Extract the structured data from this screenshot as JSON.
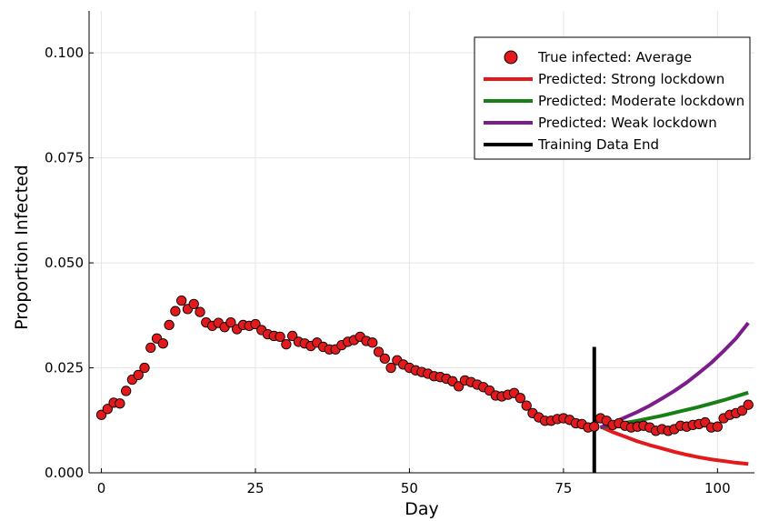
{
  "chart_data": {
    "type": "scatter",
    "xlabel": "Day",
    "ylabel": "Proportion Infected",
    "xlim": [
      -2,
      106
    ],
    "ylim": [
      0,
      0.11
    ],
    "x_ticks": [
      0,
      25,
      50,
      75,
      100
    ],
    "x_tick_labels": [
      "0",
      "25",
      "50",
      "75",
      "100"
    ],
    "y_ticks": [
      0,
      0.025,
      0.05,
      0.075,
      0.1
    ],
    "y_tick_labels": [
      "0.000",
      "0.025",
      "0.050",
      "0.075",
      "0.100"
    ],
    "grid": true,
    "legend_position": "top-right",
    "series": [
      {
        "name": "True infected: Average",
        "kind": "scatter",
        "color": "#e31a1c",
        "x": [
          0,
          1,
          2,
          3,
          4,
          5,
          6,
          7,
          8,
          9,
          10,
          11,
          12,
          13,
          14,
          15,
          16,
          17,
          18,
          19,
          20,
          21,
          22,
          23,
          24,
          25,
          26,
          27,
          28,
          29,
          30,
          31,
          32,
          33,
          34,
          35,
          36,
          37,
          38,
          39,
          40,
          41,
          42,
          43,
          44,
          45,
          46,
          47,
          48,
          49,
          50,
          51,
          52,
          53,
          54,
          55,
          56,
          57,
          58,
          59,
          60,
          61,
          62,
          63,
          64,
          65,
          66,
          67,
          68,
          69,
          70,
          71,
          72,
          73,
          74,
          75,
          76,
          77,
          78,
          79,
          80,
          81,
          82,
          83,
          84,
          85,
          86,
          87,
          88,
          89,
          90,
          91,
          92,
          93,
          94,
          95,
          96,
          97,
          98,
          99,
          100,
          101,
          102,
          103,
          104,
          105
        ],
        "y": [
          0.0138,
          0.0152,
          0.0167,
          0.0165,
          0.0195,
          0.0222,
          0.0233,
          0.025,
          0.0298,
          0.032,
          0.0308,
          0.0352,
          0.0385,
          0.041,
          0.039,
          0.0402,
          0.0383,
          0.0358,
          0.035,
          0.0357,
          0.0347,
          0.0358,
          0.0342,
          0.0352,
          0.035,
          0.0354,
          0.034,
          0.033,
          0.0326,
          0.0324,
          0.0306,
          0.0326,
          0.0312,
          0.0308,
          0.0302,
          0.031,
          0.03,
          0.0294,
          0.0294,
          0.0304,
          0.0312,
          0.0316,
          0.0324,
          0.0314,
          0.031,
          0.0288,
          0.0272,
          0.025,
          0.0268,
          0.0258,
          0.025,
          0.0244,
          0.024,
          0.0236,
          0.023,
          0.0228,
          0.0224,
          0.0218,
          0.0206,
          0.022,
          0.0216,
          0.021,
          0.0204,
          0.0196,
          0.0184,
          0.0182,
          0.0186,
          0.019,
          0.0178,
          0.016,
          0.0142,
          0.0132,
          0.0124,
          0.0124,
          0.0128,
          0.013,
          0.0126,
          0.0118,
          0.0116,
          0.0108,
          0.011,
          0.013,
          0.0124,
          0.0114,
          0.0118,
          0.0112,
          0.0108,
          0.011,
          0.0112,
          0.0108,
          0.01,
          0.0104,
          0.01,
          0.0104,
          0.0112,
          0.011,
          0.0114,
          0.0116,
          0.012,
          0.0108,
          0.011,
          0.013,
          0.0138,
          0.0142,
          0.0148,
          0.0162
        ]
      },
      {
        "name": "Predicted: Strong lockdown",
        "kind": "line",
        "color": "#e31a1c",
        "x": [
          81,
          83,
          85,
          87,
          89,
          91,
          93,
          95,
          97,
          99,
          101,
          103,
          105
        ],
        "y": [
          0.011,
          0.0097,
          0.0086,
          0.0075,
          0.0066,
          0.0058,
          0.005,
          0.0043,
          0.0037,
          0.0032,
          0.0028,
          0.0024,
          0.0021
        ]
      },
      {
        "name": "Predicted: Moderate lockdown",
        "kind": "line",
        "color": "#168016",
        "x": [
          81,
          83,
          85,
          87,
          89,
          91,
          93,
          95,
          97,
          99,
          101,
          103,
          105
        ],
        "y": [
          0.0108,
          0.0113,
          0.0119,
          0.0124,
          0.013,
          0.0136,
          0.0143,
          0.015,
          0.0157,
          0.0165,
          0.0173,
          0.0182,
          0.0191
        ]
      },
      {
        "name": "Predicted: Weak lockdown",
        "kind": "line",
        "color": "#7b1d8a",
        "x": [
          81,
          83,
          85,
          87,
          89,
          91,
          93,
          95,
          97,
          99,
          101,
          103,
          105
        ],
        "y": [
          0.0108,
          0.0119,
          0.0132,
          0.0145,
          0.016,
          0.0177,
          0.0195,
          0.0215,
          0.0238,
          0.0262,
          0.029,
          0.032,
          0.0357
        ]
      },
      {
        "name": "Training Data End",
        "kind": "vline",
        "color": "#000000",
        "x": [
          80,
          80
        ],
        "y": [
          0,
          0.03
        ]
      }
    ]
  }
}
